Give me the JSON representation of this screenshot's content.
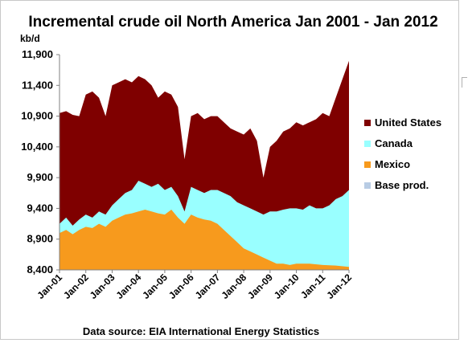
{
  "chart_data": {
    "type": "area",
    "stacked": true,
    "title": "Incremental crude oil North America  Jan 2001 - Jan 2012",
    "ylabel": "kb/d",
    "xlabel": "",
    "ylim": [
      8400,
      11900
    ],
    "yticks": [
      "8,400",
      "8,900",
      "9,400",
      "9,900",
      "10,400",
      "10,900",
      "11,400",
      "11,900"
    ],
    "ytick_values": [
      8400,
      8900,
      9400,
      9900,
      10400,
      10900,
      11400,
      11900
    ],
    "x_labels": [
      "Jan-01",
      "Jan-02",
      "Jan-03",
      "Jan-04",
      "Jan-05",
      "Jan-06",
      "Jan-07",
      "Jan-08",
      "Jan-09",
      "Jan-10",
      "Jan-11",
      "Jan-12"
    ],
    "x_label_years": [
      2001,
      2002,
      2003,
      2004,
      2005,
      2006,
      2007,
      2008,
      2009,
      2010,
      2011,
      2012
    ],
    "source": "Data source: EIA International Energy Statistics",
    "legend_position": "right",
    "series": [
      {
        "name": "Base prod.",
        "color": "#b8cce4",
        "points": [
          [
            2001.0,
            8400
          ],
          [
            2012.0,
            8400
          ]
        ]
      },
      {
        "name": "Mexico",
        "color": "#f79a1d",
        "points": [
          [
            2001.0,
            9000
          ],
          [
            2001.25,
            9050
          ],
          [
            2001.5,
            8980
          ],
          [
            2001.75,
            9050
          ],
          [
            2002.0,
            9100
          ],
          [
            2002.25,
            9080
          ],
          [
            2002.5,
            9150
          ],
          [
            2002.75,
            9100
          ],
          [
            2003.0,
            9200
          ],
          [
            2003.25,
            9250
          ],
          [
            2003.5,
            9300
          ],
          [
            2003.75,
            9320
          ],
          [
            2004.0,
            9350
          ],
          [
            2004.25,
            9380
          ],
          [
            2004.5,
            9350
          ],
          [
            2004.75,
            9320
          ],
          [
            2005.0,
            9300
          ],
          [
            2005.25,
            9380
          ],
          [
            2005.5,
            9250
          ],
          [
            2005.75,
            9150
          ],
          [
            2006.0,
            9300
          ],
          [
            2006.25,
            9250
          ],
          [
            2006.5,
            9220
          ],
          [
            2006.75,
            9200
          ],
          [
            2007.0,
            9150
          ],
          [
            2007.25,
            9050
          ],
          [
            2007.5,
            8950
          ],
          [
            2007.75,
            8850
          ],
          [
            2008.0,
            8750
          ],
          [
            2008.25,
            8700
          ],
          [
            2008.5,
            8650
          ],
          [
            2008.75,
            8600
          ],
          [
            2009.0,
            8550
          ],
          [
            2009.25,
            8500
          ],
          [
            2009.5,
            8500
          ],
          [
            2009.75,
            8480
          ],
          [
            2010.0,
            8500
          ],
          [
            2010.5,
            8500
          ],
          [
            2011.0,
            8480
          ],
          [
            2011.5,
            8470
          ],
          [
            2012.0,
            8450
          ]
        ]
      },
      {
        "name": "Canada",
        "color": "#99ffff",
        "points": [
          [
            2001.0,
            9150
          ],
          [
            2001.25,
            9250
          ],
          [
            2001.5,
            9120
          ],
          [
            2001.75,
            9220
          ],
          [
            2002.0,
            9300
          ],
          [
            2002.25,
            9250
          ],
          [
            2002.5,
            9350
          ],
          [
            2002.75,
            9300
          ],
          [
            2003.0,
            9450
          ],
          [
            2003.25,
            9550
          ],
          [
            2003.5,
            9650
          ],
          [
            2003.75,
            9700
          ],
          [
            2004.0,
            9850
          ],
          [
            2004.25,
            9800
          ],
          [
            2004.5,
            9750
          ],
          [
            2004.75,
            9800
          ],
          [
            2005.0,
            9700
          ],
          [
            2005.25,
            9750
          ],
          [
            2005.5,
            9600
          ],
          [
            2005.75,
            9350
          ],
          [
            2006.0,
            9750
          ],
          [
            2006.25,
            9700
          ],
          [
            2006.5,
            9650
          ],
          [
            2006.75,
            9700
          ],
          [
            2007.0,
            9700
          ],
          [
            2007.25,
            9650
          ],
          [
            2007.5,
            9600
          ],
          [
            2007.75,
            9500
          ],
          [
            2008.0,
            9450
          ],
          [
            2008.25,
            9400
          ],
          [
            2008.5,
            9350
          ],
          [
            2008.75,
            9300
          ],
          [
            2009.0,
            9350
          ],
          [
            2009.25,
            9350
          ],
          [
            2009.5,
            9380
          ],
          [
            2009.75,
            9400
          ],
          [
            2010.0,
            9400
          ],
          [
            2010.25,
            9380
          ],
          [
            2010.5,
            9450
          ],
          [
            2010.75,
            9400
          ],
          [
            2011.0,
            9400
          ],
          [
            2011.25,
            9450
          ],
          [
            2011.5,
            9550
          ],
          [
            2011.75,
            9600
          ],
          [
            2012.0,
            9700
          ]
        ]
      },
      {
        "name": "United States",
        "color": "#7f0000",
        "points": [
          [
            2001.0,
            10950
          ],
          [
            2001.25,
            10980
          ],
          [
            2001.5,
            10920
          ],
          [
            2001.75,
            10900
          ],
          [
            2002.0,
            11250
          ],
          [
            2002.25,
            11300
          ],
          [
            2002.5,
            11200
          ],
          [
            2002.75,
            10900
          ],
          [
            2003.0,
            11400
          ],
          [
            2003.25,
            11450
          ],
          [
            2003.5,
            11500
          ],
          [
            2003.75,
            11450
          ],
          [
            2004.0,
            11550
          ],
          [
            2004.25,
            11500
          ],
          [
            2004.5,
            11400
          ],
          [
            2004.75,
            11200
          ],
          [
            2005.0,
            11300
          ],
          [
            2005.25,
            11250
          ],
          [
            2005.5,
            11050
          ],
          [
            2005.75,
            10200
          ],
          [
            2006.0,
            10900
          ],
          [
            2006.25,
            10950
          ],
          [
            2006.5,
            10850
          ],
          [
            2006.75,
            10900
          ],
          [
            2007.0,
            10900
          ],
          [
            2007.25,
            10800
          ],
          [
            2007.5,
            10700
          ],
          [
            2007.75,
            10650
          ],
          [
            2008.0,
            10600
          ],
          [
            2008.25,
            10700
          ],
          [
            2008.5,
            10500
          ],
          [
            2008.75,
            9900
          ],
          [
            2009.0,
            10400
          ],
          [
            2009.25,
            10500
          ],
          [
            2009.5,
            10650
          ],
          [
            2009.75,
            10700
          ],
          [
            2010.0,
            10800
          ],
          [
            2010.25,
            10750
          ],
          [
            2010.5,
            10800
          ],
          [
            2010.75,
            10850
          ],
          [
            2011.0,
            10950
          ],
          [
            2011.25,
            10900
          ],
          [
            2011.5,
            11200
          ],
          [
            2011.75,
            11500
          ],
          [
            2012.0,
            11800
          ]
        ]
      }
    ]
  }
}
